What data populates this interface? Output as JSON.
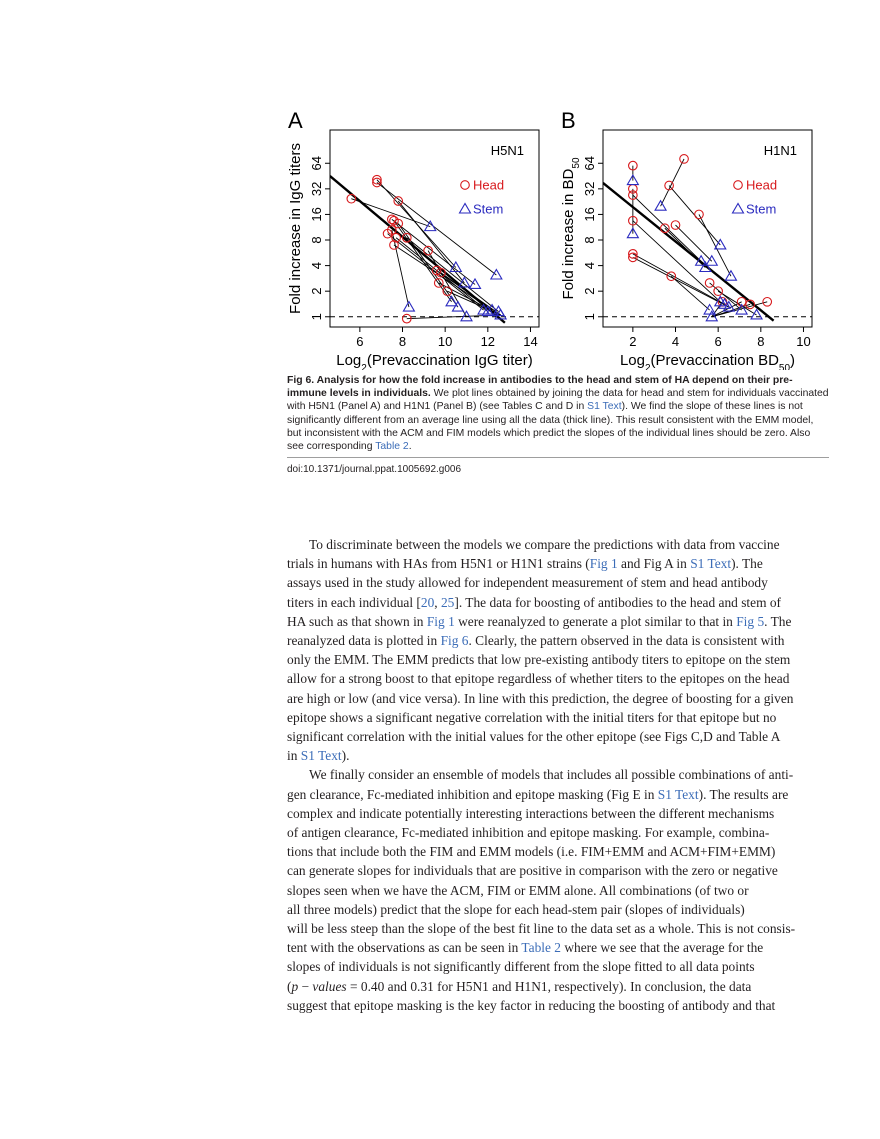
{
  "figure": {
    "panels": [
      {
        "letter": "A",
        "strain": "H5N1",
        "xlabel_base": "Log",
        "xlabel_sub": "2",
        "xlabel_rest": "(Prevaccination IgG titer)",
        "ylabel_main": "Fold increase in IgG titers",
        "ylabel_sub": "",
        "legend": {
          "head": "Head",
          "stem": "Stem"
        },
        "xticks": [
          "6",
          "8",
          "10",
          "12",
          "14"
        ],
        "yticks": [
          "1",
          "2",
          "4",
          "8",
          "16",
          "32",
          "64"
        ]
      },
      {
        "letter": "B",
        "strain": "H1N1",
        "xlabel_base": "Log",
        "xlabel_sub": "2",
        "xlabel_rest": "(Prevaccination BD",
        "xlabel_sub2": "50",
        "xlabel_close": ")",
        "ylabel_main": "Fold increase in BD",
        "ylabel_sub": "50",
        "legend": {
          "head": "Head",
          "stem": "Stem"
        },
        "xticks": [
          "2",
          "4",
          "6",
          "8",
          "10"
        ],
        "yticks": [
          "1",
          "2",
          "4",
          "8",
          "16",
          "32",
          "64"
        ]
      }
    ],
    "colors": {
      "head": "#d7191c",
      "stem": "#2b2bbf",
      "line": "#000000"
    }
  },
  "chart_data": [
    {
      "type": "scatter",
      "panel": "A",
      "title": "H5N1",
      "xlabel": "Log2(Prevaccination IgG titer)",
      "ylabel": "Fold increase in IgG titers",
      "xlim": [
        4.6,
        14.4
      ],
      "ylim_log2": [
        -0.4,
        7.3
      ],
      "y_log2_scale": true,
      "reference_line_y": 1,
      "fit_line": [
        [
          4.6,
          45.3
        ],
        [
          12.8,
          0.85
        ]
      ],
      "series": [
        {
          "name": "Head",
          "marker": "circle",
          "points": [
            [
              5.6,
              24.5
            ],
            [
              6.8,
              41.0
            ],
            [
              6.8,
              38.0
            ],
            [
              7.8,
              23.0
            ],
            [
              7.5,
              14.0
            ],
            [
              7.6,
              13.5
            ],
            [
              7.8,
              12.5
            ],
            [
              7.5,
              10.5
            ],
            [
              7.3,
              9.5
            ],
            [
              7.7,
              8.5
            ],
            [
              7.6,
              7.0
            ],
            [
              8.2,
              8.5
            ],
            [
              9.2,
              6.0
            ],
            [
              9.6,
              3.5
            ],
            [
              9.8,
              3.3
            ],
            [
              9.7,
              2.5
            ],
            [
              10.1,
              2.0
            ],
            [
              8.2,
              0.95
            ]
          ]
        },
        {
          "name": "Stem",
          "marker": "triangle",
          "points": [
            [
              9.3,
              11.5
            ],
            [
              10.5,
              3.8
            ],
            [
              12.4,
              3.1
            ],
            [
              10.9,
              2.5
            ],
            [
              11.4,
              2.4
            ],
            [
              10.3,
              1.5
            ],
            [
              10.6,
              1.3
            ],
            [
              8.3,
              1.3
            ],
            [
              11.8,
              1.2
            ],
            [
              12.0,
              1.15
            ],
            [
              12.2,
              1.2
            ],
            [
              12.5,
              1.15
            ],
            [
              11.0,
              1.0
            ],
            [
              12.6,
              1.05
            ]
          ]
        }
      ]
    },
    {
      "type": "scatter",
      "panel": "B",
      "title": "H1N1",
      "xlabel": "Log2(Prevaccination BD50)",
      "ylabel": "Fold increase in BD50",
      "xlim": [
        0.6,
        10.4
      ],
      "ylim_log2": [
        -0.4,
        7.3
      ],
      "y_log2_scale": true,
      "reference_line_y": 1,
      "fit_line": [
        [
          0.6,
          37.5
        ],
        [
          8.6,
          0.9
        ]
      ],
      "series": [
        {
          "name": "Head",
          "marker": "circle",
          "points": [
            [
              2.0,
              60.0
            ],
            [
              4.4,
              72.0
            ],
            [
              2.0,
              32.0
            ],
            [
              3.7,
              35.0
            ],
            [
              2.0,
              27.0
            ],
            [
              4.0,
              12.0
            ],
            [
              3.5,
              11.0
            ],
            [
              5.1,
              16.0
            ],
            [
              2.0,
              13.5
            ],
            [
              2.0,
              5.5
            ],
            [
              2.0,
              5.0
            ],
            [
              3.8,
              3.0
            ],
            [
              5.6,
              2.5
            ],
            [
              6.0,
              2.0
            ],
            [
              6.2,
              1.5
            ],
            [
              7.1,
              1.5
            ],
            [
              7.5,
              1.4
            ],
            [
              8.3,
              1.5
            ]
          ]
        },
        {
          "name": "Stem",
          "marker": "triangle",
          "points": [
            [
              2.0,
              40.0
            ],
            [
              3.3,
              20.0
            ],
            [
              2.0,
              9.5
            ],
            [
              6.1,
              7.0
            ],
            [
              5.2,
              4.5
            ],
            [
              5.7,
              4.5
            ],
            [
              5.4,
              3.8
            ],
            [
              6.6,
              3.0
            ],
            [
              6.1,
              1.5
            ],
            [
              6.3,
              1.4
            ],
            [
              6.5,
              1.3
            ],
            [
              5.6,
              1.2
            ],
            [
              7.1,
              1.2
            ],
            [
              7.8,
              1.05
            ],
            [
              5.7,
              1.0
            ]
          ]
        }
      ]
    }
  ],
  "caption": {
    "bold": "Fig 6. Analysis for how the fold increase in antibodies to the head and stem of HA depend on their pre-immune levels in individuals.",
    "text1": " We plot lines obtained by joining the data for head and stem for individuals vaccinated with H5N1 (Panel A) and H1N1 (Panel B) (see Tables C and D in ",
    "link1": "S1 Text",
    "text2": "). We find the slope of these lines is not significantly different from an average line using all the data (thick line). This result consistent with the EMM model, but inconsistent with the ACM and FIM models which predict the slopes of the individual lines should be zero. Also see corresponding ",
    "link2": "Table 2",
    "text3": "."
  },
  "doi": "doi:10.1371/journal.ppat.1005692.g006",
  "body": {
    "p1": [
      [
        [
          "t",
          "To discriminate between the models we compare the predictions with data from vaccine"
        ]
      ],
      [
        [
          "t",
          "trials in humans with HAs from H5N1 or H1N1 strains ("
        ],
        [
          "a",
          "Fig 1"
        ],
        [
          "t",
          " and Fig A in "
        ],
        [
          "a",
          "S1 Text"
        ],
        [
          "t",
          "). The"
        ]
      ],
      [
        [
          "t",
          "assays used in the study allowed for independent measurement of stem and head antibody"
        ]
      ],
      [
        [
          "t",
          "titers in each individual ["
        ],
        [
          "a",
          "20"
        ],
        [
          "t",
          ", "
        ],
        [
          "a",
          "25"
        ],
        [
          "t",
          "]. The data for boosting of antibodies to the head and stem of"
        ]
      ],
      [
        [
          "t",
          "HA such as that shown in "
        ],
        [
          "a",
          "Fig 1"
        ],
        [
          "t",
          " were reanalyzed to generate a plot similar to that in "
        ],
        [
          "a",
          "Fig 5"
        ],
        [
          "t",
          ". The"
        ]
      ],
      [
        [
          "t",
          "reanalyzed data is plotted in "
        ],
        [
          "a",
          "Fig 6"
        ],
        [
          "t",
          ". Clearly, the pattern observed in the data is consistent with"
        ]
      ],
      [
        [
          "t",
          "only the EMM. The EMM predicts that low pre-existing antibody titers to epitope on the stem"
        ]
      ],
      [
        [
          "t",
          "allow for a strong boost to that epitope regardless of whether titers to the epitopes on the head"
        ]
      ],
      [
        [
          "t",
          "are high or low (and vice versa). In line with this prediction, the degree of boosting for a given"
        ]
      ],
      [
        [
          "t",
          "epitope shows a significant negative correlation with the initial titers for that epitope but no"
        ]
      ],
      [
        [
          "t",
          "significant correlation with the initial values for the other epitope (see Figs C,D and Table A"
        ]
      ],
      [
        [
          "t",
          "in "
        ],
        [
          "a",
          "S1 Text"
        ],
        [
          "t",
          ")."
        ]
      ]
    ],
    "p2": [
      [
        [
          "t",
          "We finally consider an ensemble of models that includes all possible combinations of anti-"
        ]
      ],
      [
        [
          "t",
          "gen clearance, Fc-mediated inhibition and epitope masking (Fig E in "
        ],
        [
          "a",
          "S1 Text"
        ],
        [
          "t",
          "). The results are"
        ]
      ],
      [
        [
          "t",
          "complex and indicate potentially interesting interactions between the different mechanisms"
        ]
      ],
      [
        [
          "t",
          "of antigen clearance, Fc-mediated inhibition and epitope masking. For example, combina-"
        ]
      ],
      [
        [
          "t",
          "tions that include both the FIM and EMM models (i.e. FIM+EMM and ACM+FIM+EMM)"
        ]
      ],
      [
        [
          "t",
          "can generate slopes for individuals that are positive in comparison with the zero or negative"
        ]
      ],
      [
        [
          "t",
          "slopes seen when we have the ACM, FIM or EMM alone. All combinations (of two or"
        ]
      ],
      [
        [
          "t",
          "all three models) predict that the slope for each head-stem pair (slopes of individuals)"
        ]
      ],
      [
        [
          "t",
          "will be less steep than the slope of the best fit line to the data set as a whole. This is not consis-"
        ]
      ],
      [
        [
          "t",
          "tent with the observations as can be seen in "
        ],
        [
          "a",
          "Table 2"
        ],
        [
          "t",
          " where we see that the average for the"
        ]
      ],
      [
        [
          "t",
          "slopes of individuals is not significantly different from the slope fitted to all data points"
        ]
      ],
      [
        [
          "t",
          "("
        ],
        [
          "i",
          "p"
        ],
        [
          "t",
          " − "
        ],
        [
          "i",
          "values"
        ],
        [
          "t",
          " = 0.40 and 0.31 for H5N1 and H1N1, respectively). In conclusion, the data"
        ]
      ],
      [
        [
          "t",
          "suggest that epitope masking is the key factor in reducing the boosting of antibody and that"
        ]
      ]
    ]
  }
}
